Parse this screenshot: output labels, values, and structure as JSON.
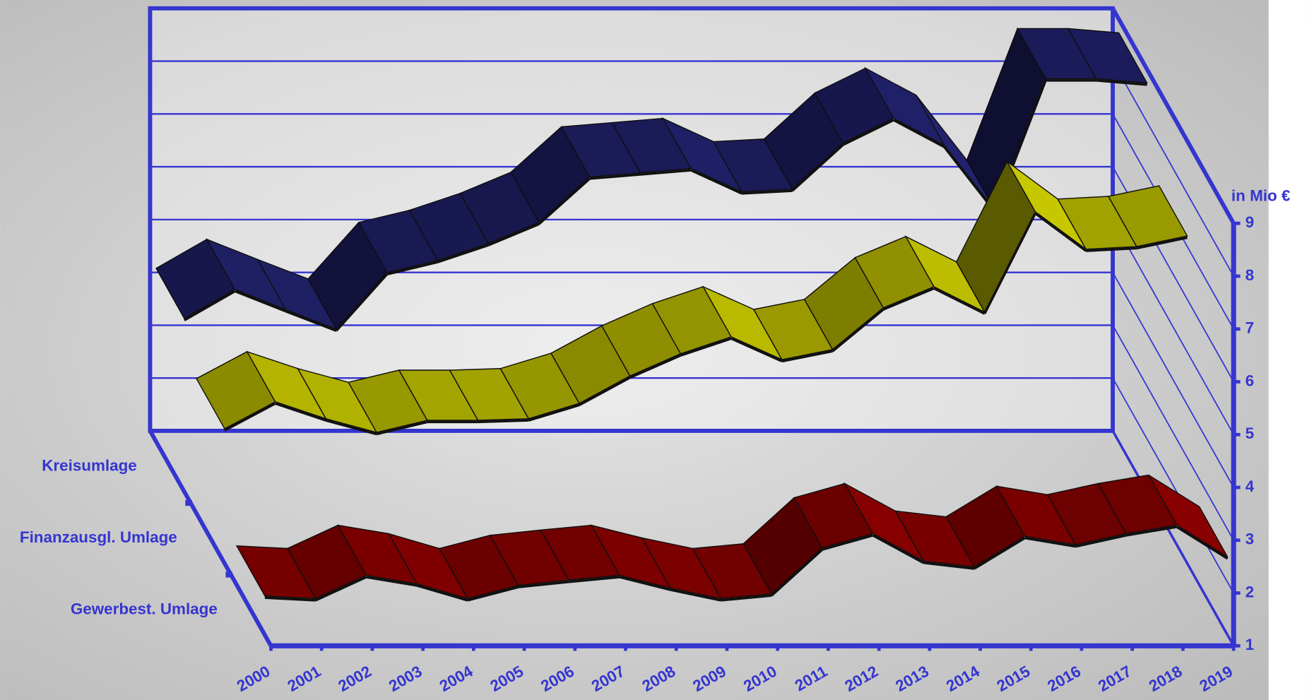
{
  "chart_data": {
    "type": "ribbon3d",
    "y_label": "in Mio €",
    "categories": [
      "2000",
      "2001",
      "2002",
      "2003",
      "2004",
      "2005",
      "2006",
      "2007",
      "2008",
      "2009",
      "2010",
      "2011",
      "2012",
      "2013",
      "2014",
      "2015",
      "2016",
      "2017",
      "2018",
      "2019"
    ],
    "series": [
      {
        "name": "Kreisumlage",
        "color": "#22226e",
        "values": [
          4.28,
          4.83,
          4.45,
          4.08,
          5.15,
          5.38,
          5.7,
          6.1,
          6.96,
          7.04,
          7.12,
          6.68,
          6.73,
          7.6,
          8.07,
          7.56,
          6.33,
          8.82,
          8.82,
          8.74
        ]
      },
      {
        "name": "Finanzausgl. Umlage",
        "color": "#c8c800",
        "values": [
          3.55,
          4.06,
          3.74,
          3.48,
          3.71,
          3.71,
          3.74,
          4.03,
          4.55,
          4.97,
          5.29,
          4.86,
          5.05,
          5.84,
          6.24,
          5.76,
          7.66,
          6.95,
          7.0,
          7.2
        ]
      },
      {
        "name": "Gewerbest. Umlage",
        "color": "#8e0000",
        "values": [
          1.74,
          1.69,
          2.13,
          1.97,
          1.69,
          1.94,
          2.04,
          2.13,
          1.89,
          1.69,
          1.78,
          2.65,
          2.92,
          2.4,
          2.29,
          2.87,
          2.71,
          2.92,
          3.08,
          2.48
        ]
      }
    ],
    "ylim": [
      1,
      9
    ],
    "yticks": [
      1,
      2,
      3,
      4,
      5,
      6,
      7,
      8,
      9
    ],
    "grid": true,
    "axis_color": "#3535d0"
  }
}
